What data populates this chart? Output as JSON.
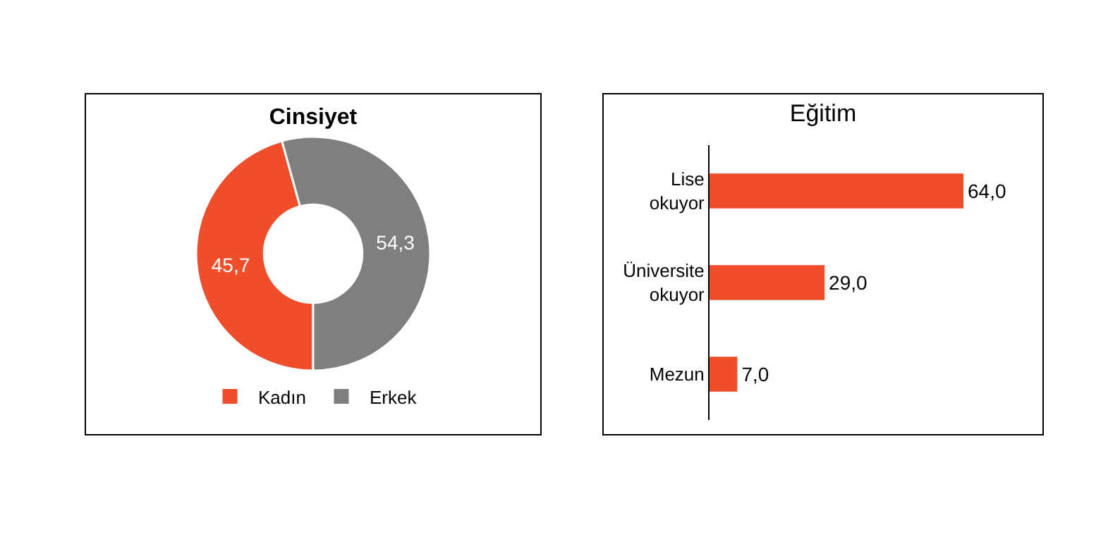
{
  "chart_data": [
    {
      "type": "donut",
      "title": "Cinsiyet",
      "categories": [
        "Kadın",
        "Erkek"
      ],
      "values": [
        45.7,
        54.3
      ],
      "colors": [
        "#f04e2a",
        "#7f7f7f"
      ],
      "value_labels": [
        "45,7",
        "54,3"
      ],
      "legend": "bottom"
    },
    {
      "type": "bar",
      "orientation": "horizontal",
      "title": "Eğitim",
      "categories": [
        "Lise okuyor",
        "Üniversite okuyor",
        "Mezun"
      ],
      "values": [
        64.0,
        29.0,
        7.0
      ],
      "color": "#f04e2a",
      "value_labels": [
        "64,0",
        "29,0",
        "7,0"
      ],
      "legend": false,
      "grid": false
    }
  ]
}
